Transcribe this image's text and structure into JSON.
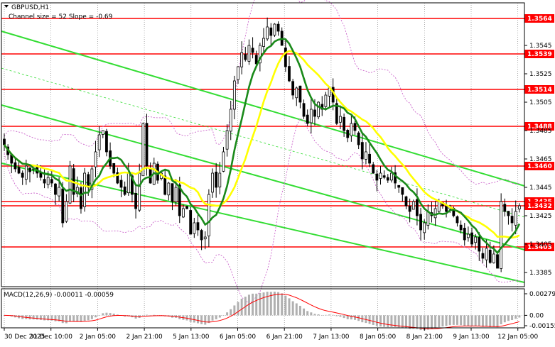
{
  "header": {
    "symbol": "GBPUSD,H1",
    "channel_note": "Channel size = 52 Slope = -0.69",
    "arrow_icon": "down-triangle-icon"
  },
  "macd": {
    "label": "MACD(12,26,9) -0.00011 -0.00059",
    "axis_labels": [
      "0.00279",
      "0.00",
      "-0.00155"
    ]
  },
  "price_axis": {
    "tick_labels": [
      "1.3545",
      "1.3525",
      "1.3505",
      "1.3485",
      "1.3465",
      "1.3445",
      "1.3425",
      "1.3405",
      "1.3385"
    ]
  },
  "levels": [
    {
      "value": "1.3564",
      "color": "#ff0000"
    },
    {
      "value": "1.3539",
      "color": "#ff0000"
    },
    {
      "value": "1.3514",
      "color": "#ff0000"
    },
    {
      "value": "1.3488",
      "color": "#ff0000"
    },
    {
      "value": "1.3460",
      "color": "#ff0000"
    },
    {
      "value": "1.3435",
      "color": "#ff0000"
    },
    {
      "value": "1.3432",
      "color": "#ff0000"
    },
    {
      "value": "1.3403",
      "color": "#ff0000"
    }
  ],
  "time_axis": [
    "30 Dec 2025",
    "31 Dec 10:00",
    "2 Jan 05:00",
    "2 Jan 21:00",
    "5 Jan 13:00",
    "6 Jan 05:00",
    "6 Jan 21:00",
    "7 Jan 13:00",
    "8 Jan 05:00",
    "8 Jan 21:00",
    "9 Jan 13:00",
    "12 Jan 05:00"
  ],
  "colors": {
    "ma_fast": "#ffff00",
    "ma_slow": "#1a8a1a",
    "channel": "#33dd33",
    "bollinger": "#cc66cc",
    "candles": "#000000",
    "level": "#ff0000",
    "macd_hist": "#b0b0b0",
    "macd_signal": "#ff0000"
  },
  "chart_data": {
    "type": "candlestick",
    "symbol": "GBPUSD",
    "timeframe": "H1",
    "y_range": [
      1.3375,
      1.3575
    ],
    "close": [
      1.3475,
      1.3468,
      1.3462,
      1.3458,
      1.3455,
      1.3452,
      1.346,
      1.3456,
      1.3458,
      1.3455,
      1.3452,
      1.3448,
      1.3452,
      1.3448,
      1.344,
      1.3445,
      1.342,
      1.3435,
      1.346,
      1.344,
      1.3445,
      1.343,
      1.3455,
      1.3445,
      1.3458,
      1.347,
      1.3482,
      1.3485,
      1.347,
      1.346,
      1.3455,
      1.3448,
      1.3445,
      1.344,
      1.3455,
      1.344,
      1.343,
      1.3455,
      1.349,
      1.346,
      1.3448,
      1.3462,
      1.345,
      1.3455,
      1.344,
      1.3448,
      1.3435,
      1.3445,
      1.3425,
      1.343,
      1.343,
      1.3412,
      1.342,
      1.3415,
      1.3408,
      1.341,
      1.344,
      1.3455,
      1.3445,
      1.3455,
      1.347,
      1.3485,
      1.35,
      1.352,
      1.353,
      1.354,
      1.3535,
      1.3545,
      1.354,
      1.3532,
      1.3545,
      1.355,
      1.3558,
      1.3552,
      1.356,
      1.3555,
      1.3545,
      1.353,
      1.352,
      1.351,
      1.3515,
      1.3505,
      1.3495,
      1.349,
      1.35,
      1.3495,
      1.3505,
      1.35,
      1.351,
      1.3515,
      1.3505,
      1.349,
      1.3495,
      1.3485,
      1.348,
      1.349,
      1.3485,
      1.3475,
      1.3465,
      1.347,
      1.3462,
      1.3455,
      1.345,
      1.3455,
      1.3452,
      1.345,
      1.3455,
      1.3448,
      1.3445,
      1.344,
      1.3432,
      1.3428,
      1.3435,
      1.3425,
      1.3415,
      1.342,
      1.3428,
      1.3425,
      1.343,
      1.3435,
      1.3432,
      1.3428,
      1.3432,
      1.3425,
      1.342,
      1.3415,
      1.3408,
      1.3412,
      1.3405,
      1.341,
      1.34,
      1.3395,
      1.3402,
      1.3392,
      1.3398,
      1.3388,
      1.3435,
      1.3428,
      1.3425,
      1.342,
      1.3428,
      1.3432
    ]
  }
}
